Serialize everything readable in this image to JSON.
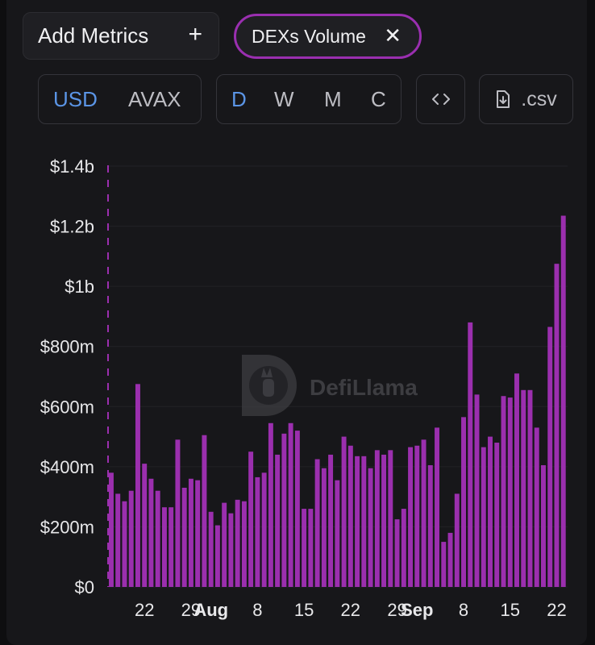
{
  "controls": {
    "add_metrics_label": "Add Metrics",
    "add_icon": "plus-icon",
    "metric_chip_label": "DEXs Volume",
    "remove_icon": "close-icon",
    "currency_options": [
      "USD",
      "AVAX"
    ],
    "currency_selected": "USD",
    "period_options": [
      "D",
      "W",
      "M",
      "C"
    ],
    "period_selected": "D",
    "embed_icon": "code-icon",
    "csv_label": ".csv",
    "csv_icon": "file-download-icon"
  },
  "watermark": {
    "text": "DefiLlama",
    "icon": "llama-logo"
  },
  "colors": {
    "bar": "#9b2fae",
    "chip_border": "#9a2fb0",
    "active_option": "#5b95e6",
    "background": "#17171a"
  },
  "chart_data": {
    "type": "bar",
    "ylim": [
      0,
      1400000000
    ],
    "yticks": [
      {
        "value": 0,
        "label": "$0"
      },
      {
        "value": 200000000,
        "label": "$200m"
      },
      {
        "value": 400000000,
        "label": "$400m"
      },
      {
        "value": 600000000,
        "label": "$600m"
      },
      {
        "value": 800000000,
        "label": "$800m"
      },
      {
        "value": 1000000000,
        "label": "$1b"
      },
      {
        "value": 1200000000,
        "label": "$1.2b"
      },
      {
        "value": 1400000000,
        "label": "$1.4b"
      }
    ],
    "xticks": [
      {
        "index": 5,
        "label": "22",
        "bold": false
      },
      {
        "index": 12,
        "label": "29",
        "bold": false
      },
      {
        "index": 15,
        "label": "Aug",
        "bold": true
      },
      {
        "index": 22,
        "label": "8",
        "bold": false
      },
      {
        "index": 29,
        "label": "15",
        "bold": false
      },
      {
        "index": 36,
        "label": "22",
        "bold": false
      },
      {
        "index": 43,
        "label": "29",
        "bold": false
      },
      {
        "index": 46,
        "label": "Sep",
        "bold": true
      },
      {
        "index": 53,
        "label": "8",
        "bold": false
      },
      {
        "index": 60,
        "label": "15",
        "bold": false
      },
      {
        "index": 67,
        "label": "22",
        "bold": false
      }
    ],
    "grid": true,
    "values": [
      380000000,
      310000000,
      285000000,
      320000000,
      675000000,
      410000000,
      360000000,
      320000000,
      265000000,
      265000000,
      490000000,
      330000000,
      360000000,
      355000000,
      505000000,
      250000000,
      205000000,
      280000000,
      245000000,
      290000000,
      285000000,
      450000000,
      365000000,
      380000000,
      545000000,
      440000000,
      510000000,
      545000000,
      520000000,
      260000000,
      260000000,
      425000000,
      395000000,
      440000000,
      355000000,
      500000000,
      470000000,
      435000000,
      435000000,
      395000000,
      455000000,
      440000000,
      455000000,
      225000000,
      260000000,
      465000000,
      470000000,
      490000000,
      405000000,
      530000000,
      150000000,
      180000000,
      310000000,
      565000000,
      880000000,
      640000000,
      465000000,
      500000000,
      480000000,
      635000000,
      630000000,
      710000000,
      655000000,
      655000000,
      530000000,
      405000000,
      865000000,
      1075000000,
      1235000000
    ]
  }
}
